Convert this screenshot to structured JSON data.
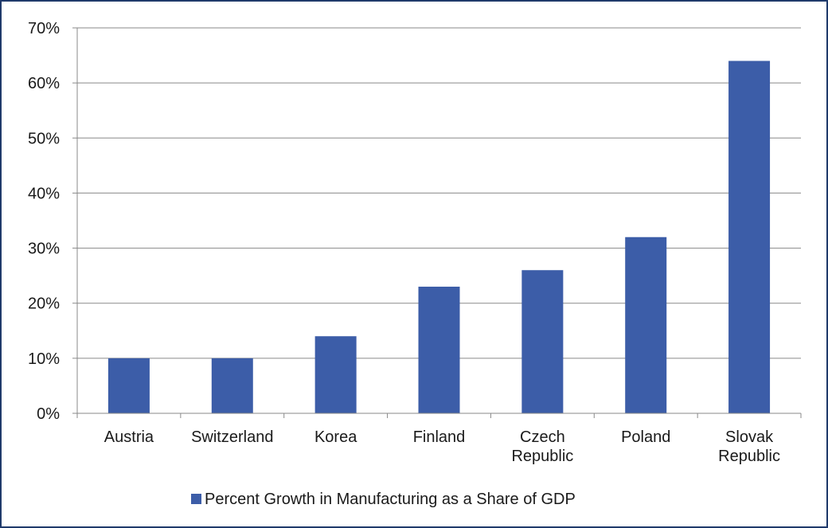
{
  "chart_data": {
    "type": "bar",
    "categories": [
      [
        "Austria"
      ],
      [
        "Switzerland"
      ],
      [
        "Korea"
      ],
      [
        "Finland"
      ],
      [
        "Czech",
        "Republic"
      ],
      [
        "Poland"
      ],
      [
        "Slovak",
        "Republic"
      ]
    ],
    "series": [
      {
        "name": "Percent Growth in Manufacturing as a Share of GDP",
        "color": "#3c5da8",
        "values": [
          10,
          10,
          14,
          23,
          26,
          32,
          64
        ]
      }
    ],
    "yticks": [
      "0%",
      "10%",
      "20%",
      "30%",
      "40%",
      "50%",
      "60%",
      "70%"
    ],
    "ylim": [
      0,
      70
    ],
    "grid": true,
    "legend_position": "bottom",
    "title": "",
    "xlabel": "",
    "ylabel": ""
  }
}
